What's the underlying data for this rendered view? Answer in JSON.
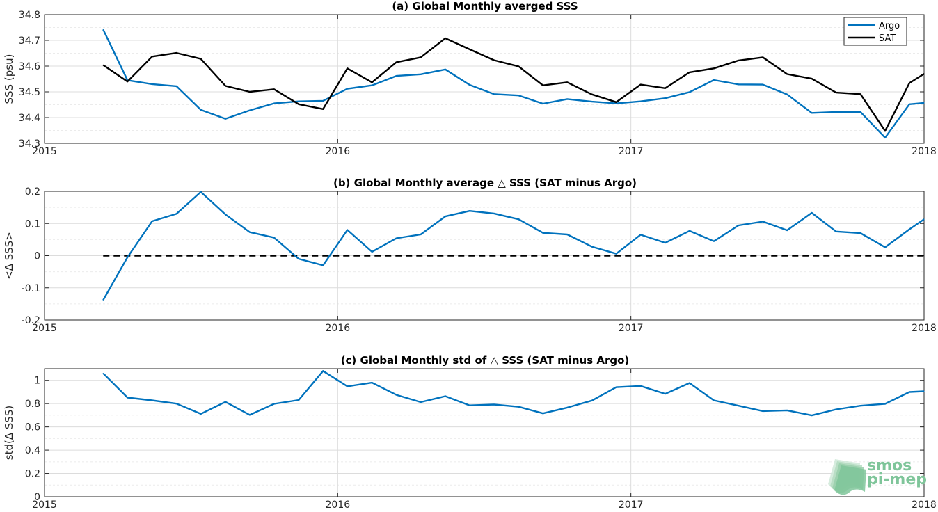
{
  "colors": {
    "argo": "#0072BD",
    "sat": "#000000",
    "zero_line": "#000000",
    "logo": "#7fc59a"
  },
  "logo": {
    "line1": "smos",
    "line2": "pi-mep"
  },
  "chart_data": [
    {
      "id": "a",
      "type": "line",
      "title": "(a) Global Monthly averged SSS",
      "ylabel": "SSS (psu)",
      "xlim": [
        2015,
        2018
      ],
      "ylim": [
        34.3,
        34.8
      ],
      "xticks": [
        "2015",
        "2016",
        "2017",
        "2018"
      ],
      "yticks": [
        "34.3",
        "34.4",
        "34.5",
        "34.6",
        "34.7",
        "34.8"
      ],
      "grid": true,
      "legend": {
        "placement": "top-right",
        "entries": [
          "Argo",
          "SAT"
        ]
      },
      "x": [
        2015.2,
        2015.283,
        2015.367,
        2015.45,
        2015.533,
        2015.617,
        2015.7,
        2015.783,
        2015.867,
        2015.95,
        2016.033,
        2016.117,
        2016.2,
        2016.283,
        2016.367,
        2016.45,
        2016.533,
        2016.617,
        2016.7,
        2016.783,
        2016.867,
        2016.95,
        2017.033,
        2017.117,
        2017.2,
        2017.283,
        2017.367,
        2017.45,
        2017.533,
        2017.617,
        2017.7,
        2017.783,
        2017.867,
        2017.95,
        2018.0
      ],
      "series": [
        {
          "name": "Argo",
          "color": "#0072BD",
          "values": [
            34.742,
            34.545,
            34.53,
            34.522,
            34.43,
            34.395,
            34.428,
            34.455,
            34.463,
            34.465,
            34.512,
            34.525,
            34.562,
            34.568,
            34.587,
            34.527,
            34.491,
            34.486,
            34.454,
            34.472,
            34.462,
            34.455,
            34.463,
            34.475,
            34.499,
            34.546,
            34.529,
            34.528,
            34.49,
            34.418,
            34.422,
            34.422,
            34.322,
            34.452,
            34.457
          ]
        },
        {
          "name": "SAT",
          "color": "#000000",
          "values": [
            34.604,
            34.54,
            34.637,
            34.651,
            34.628,
            34.523,
            34.5,
            34.51,
            34.452,
            34.433,
            34.591,
            34.537,
            34.615,
            34.634,
            34.708,
            34.665,
            34.623,
            34.599,
            34.525,
            34.537,
            34.49,
            34.46,
            34.528,
            34.514,
            34.576,
            34.591,
            34.622,
            34.634,
            34.569,
            34.551,
            34.497,
            34.491,
            34.348,
            34.534,
            34.57
          ]
        }
      ]
    },
    {
      "id": "b",
      "type": "line",
      "title": "(b) Global Monthly average △ SSS (SAT minus Argo)",
      "ylabel": "<Δ SSS>",
      "xlim": [
        2015,
        2018
      ],
      "ylim": [
        -0.2,
        0.2
      ],
      "xticks": [
        "2015",
        "2016",
        "2017",
        "2018"
      ],
      "yticks": [
        "-0.2",
        "-0.1",
        "0",
        "0.1",
        "0.2"
      ],
      "grid": true,
      "reference_line": {
        "y": 0,
        "style": "dashed",
        "x_range": [
          2015.2,
          2018.0
        ]
      },
      "x": [
        2015.2,
        2015.283,
        2015.367,
        2015.45,
        2015.533,
        2015.617,
        2015.7,
        2015.783,
        2015.867,
        2015.95,
        2016.033,
        2016.117,
        2016.2,
        2016.283,
        2016.367,
        2016.45,
        2016.533,
        2016.617,
        2016.7,
        2016.783,
        2016.867,
        2016.95,
        2017.033,
        2017.117,
        2017.2,
        2017.283,
        2017.367,
        2017.45,
        2017.533,
        2017.617,
        2017.7,
        2017.783,
        2017.867,
        2017.95,
        2018.0
      ],
      "series": [
        {
          "name": "",
          "color": "#0072BD",
          "values": [
            -0.138,
            -0.005,
            0.107,
            0.13,
            0.198,
            0.128,
            0.073,
            0.056,
            -0.01,
            -0.03,
            0.08,
            0.012,
            0.054,
            0.066,
            0.122,
            0.139,
            0.131,
            0.113,
            0.071,
            0.066,
            0.028,
            0.006,
            0.065,
            0.04,
            0.077,
            0.045,
            0.094,
            0.106,
            0.079,
            0.133,
            0.075,
            0.07,
            0.026,
            0.082,
            0.113
          ]
        }
      ]
    },
    {
      "id": "c",
      "type": "line",
      "title": "(c) Global Monthly std of △ SSS (SAT minus Argo)",
      "ylabel": "std(Δ SSS)",
      "xlim": [
        2015,
        2018
      ],
      "ylim": [
        0,
        1.1
      ],
      "xticks": [
        "2015",
        "2016",
        "2017",
        "2018"
      ],
      "yticks": [
        "0",
        "0.2",
        "0.4",
        "0.6",
        "0.8",
        "1"
      ],
      "grid": true,
      "x": [
        2015.2,
        2015.283,
        2015.367,
        2015.45,
        2015.533,
        2015.617,
        2015.7,
        2015.783,
        2015.867,
        2015.95,
        2016.033,
        2016.117,
        2016.2,
        2016.283,
        2016.367,
        2016.45,
        2016.533,
        2016.617,
        2016.7,
        2016.783,
        2016.867,
        2016.95,
        2017.033,
        2017.117,
        2017.2,
        2017.283,
        2017.367,
        2017.45,
        2017.533,
        2017.617,
        2017.7,
        2017.783,
        2017.867,
        2017.95,
        2018.0
      ],
      "series": [
        {
          "name": "",
          "color": "#0072BD",
          "values": [
            1.06,
            0.852,
            0.828,
            0.8,
            0.712,
            0.815,
            0.703,
            0.798,
            0.831,
            1.08,
            0.948,
            0.98,
            0.875,
            0.813,
            0.864,
            0.785,
            0.792,
            0.773,
            0.716,
            0.766,
            0.826,
            0.941,
            0.952,
            0.884,
            0.977,
            0.828,
            0.782,
            0.736,
            0.742,
            0.699,
            0.75,
            0.782,
            0.798,
            0.9,
            0.906
          ]
        }
      ]
    }
  ]
}
